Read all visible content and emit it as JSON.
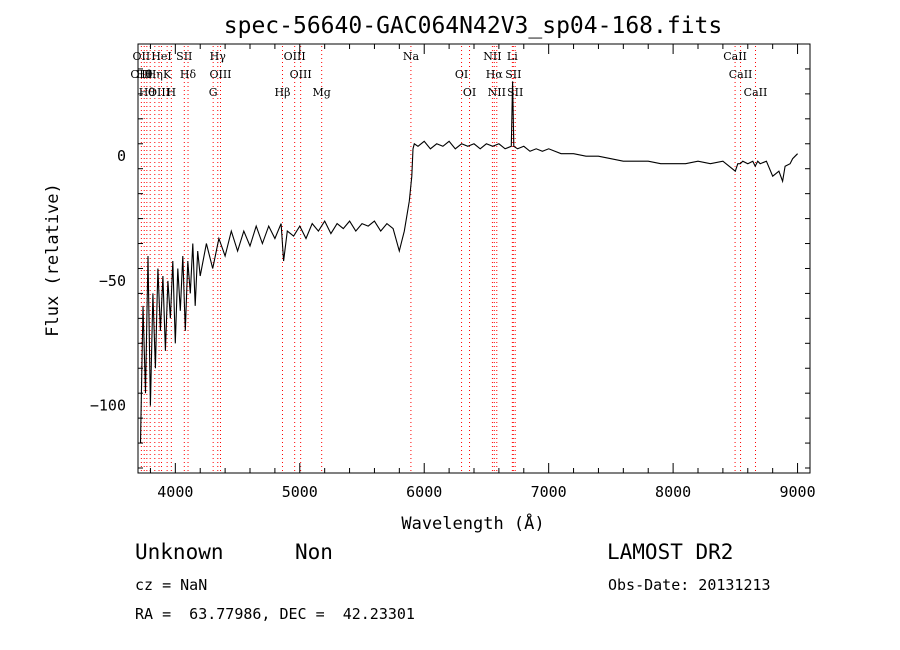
{
  "chart_data": {
    "type": "line",
    "title": "spec-56640-GAC064N42V3_sp04-168.fits",
    "xlabel": "Wavelength (Å)",
    "ylabel": "Flux (relative)",
    "xlim": [
      3700,
      9100
    ],
    "ylim": [
      -127,
      45
    ],
    "xticks": [
      4000,
      5000,
      6000,
      7000,
      8000,
      9000
    ],
    "yticks": [
      -100,
      -50,
      0
    ],
    "grid": false,
    "line_color": "#000000",
    "marker_color": "#ff0000",
    "series": [
      {
        "x": [
          3720,
          3740,
          3760,
          3780,
          3800,
          3820,
          3840,
          3860,
          3880,
          3900,
          3920,
          3940,
          3960,
          3980,
          4000,
          4020,
          4040,
          4060,
          4080,
          4100,
          4120,
          4140,
          4160,
          4180,
          4200,
          4250,
          4300,
          4350,
          4400,
          4450,
          4500,
          4550,
          4600,
          4650,
          4700,
          4750,
          4800,
          4850,
          4870,
          4900,
          4950,
          5000,
          5050,
          5100,
          5150,
          5200,
          5250,
          5300,
          5350,
          5400,
          5450,
          5500,
          5550,
          5600,
          5650,
          5700,
          5750,
          5800,
          5820,
          5840,
          5860,
          5880,
          5900,
          5910,
          5920,
          5950,
          6000,
          6050,
          6100,
          6150,
          6200,
          6250,
          6300,
          6350,
          6400,
          6450,
          6500,
          6550,
          6600,
          6650,
          6700,
          6710,
          6720,
          6750,
          6800,
          6850,
          6900,
          6950,
          7000,
          7050,
          7100,
          7200,
          7300,
          7400,
          7500,
          7600,
          7700,
          7800,
          7900,
          8000,
          8100,
          8200,
          8300,
          8400,
          8450,
          8500,
          8520,
          8540,
          8560,
          8600,
          8640,
          8660,
          8680,
          8700,
          8750,
          8800,
          8850,
          8880,
          8900,
          8940,
          8960,
          8980,
          9000
        ],
        "y": [
          -115,
          -60,
          -95,
          -40,
          -100,
          -55,
          -85,
          -45,
          -70,
          -48,
          -78,
          -50,
          -65,
          -42,
          -75,
          -45,
          -62,
          -40,
          -70,
          -42,
          -55,
          -35,
          -60,
          -38,
          -48,
          -35,
          -45,
          -33,
          -40,
          -30,
          -38,
          -30,
          -36,
          -28,
          -35,
          -28,
          -33,
          -27,
          -42,
          -30,
          -32,
          -28,
          -33,
          -27,
          -30,
          -26,
          -31,
          -27,
          -29,
          -26,
          -30,
          -27,
          -28,
          -26,
          -30,
          -27,
          -29,
          -38,
          -34,
          -30,
          -24,
          -18,
          -8,
          3,
          5,
          4,
          6,
          3,
          5,
          4,
          6,
          3,
          5,
          4,
          5,
          3,
          5,
          4,
          5,
          3,
          4,
          30,
          4,
          3,
          4,
          2,
          3,
          2,
          3,
          2,
          1,
          1,
          0,
          0,
          -1,
          -2,
          -2,
          -2,
          -3,
          -3,
          -3,
          -2,
          -3,
          -2,
          -4,
          -6,
          -3,
          -3,
          -2,
          -3,
          -2,
          -4,
          -2,
          -3,
          -2,
          -8,
          -6,
          -10,
          -4,
          -3,
          -1,
          0,
          1
        ]
      }
    ],
    "lines": [
      {
        "x": 3727,
        "labels": [
          "OII",
          "OIII"
        ]
      },
      {
        "x": 3750,
        "labels": [
          "Hθ"
        ]
      },
      {
        "x": 3771,
        "labels": [
          "Hθ"
        ]
      },
      {
        "x": 3798,
        "labels": []
      },
      {
        "x": 3835,
        "labels": [
          "Hη"
        ]
      },
      {
        "x": 3869,
        "labels": [
          "OIII"
        ]
      },
      {
        "x": 3889,
        "labels": [
          "HeI"
        ]
      },
      {
        "x": 3934,
        "labels": [
          "K"
        ]
      },
      {
        "x": 3968,
        "labels": [
          "H"
        ]
      },
      {
        "x": 4072,
        "labels": [
          "SII"
        ]
      },
      {
        "x": 4102,
        "labels": [
          "Hδ"
        ]
      },
      {
        "x": 4304,
        "labels": [
          "G"
        ]
      },
      {
        "x": 4341,
        "labels": [
          "Hγ"
        ]
      },
      {
        "x": 4363,
        "labels": [
          "OIII"
        ]
      },
      {
        "x": 4861,
        "labels": [
          "Hβ"
        ]
      },
      {
        "x": 4959,
        "labels": [
          "OIII"
        ]
      },
      {
        "x": 5007,
        "labels": [
          "OIII"
        ]
      },
      {
        "x": 5176,
        "labels": [
          "Mg"
        ]
      },
      {
        "x": 5893,
        "labels": [
          "Na"
        ]
      },
      {
        "x": 6300,
        "labels": [
          "OI"
        ]
      },
      {
        "x": 6364,
        "labels": [
          "OI"
        ]
      },
      {
        "x": 6548,
        "labels": [
          "NII"
        ]
      },
      {
        "x": 6563,
        "labels": [
          "Hα"
        ]
      },
      {
        "x": 6583,
        "labels": [
          "NII"
        ]
      },
      {
        "x": 6708,
        "labels": [
          "Li"
        ]
      },
      {
        "x": 6716,
        "labels": [
          "SII"
        ]
      },
      {
        "x": 6731,
        "labels": [
          "SII"
        ]
      },
      {
        "x": 8498,
        "labels": [
          "CaII"
        ]
      },
      {
        "x": 8542,
        "labels": [
          "CaII"
        ]
      },
      {
        "x": 8662,
        "labels": [
          "CaII"
        ]
      }
    ]
  },
  "footer": {
    "class_label": "Unknown",
    "subclass_label": "Non",
    "survey": "LAMOST DR2",
    "cz": "cz = NaN",
    "obs_date": "Obs-Date: 20131213",
    "coords": "RA =  63.77986, DEC =  42.23301"
  }
}
